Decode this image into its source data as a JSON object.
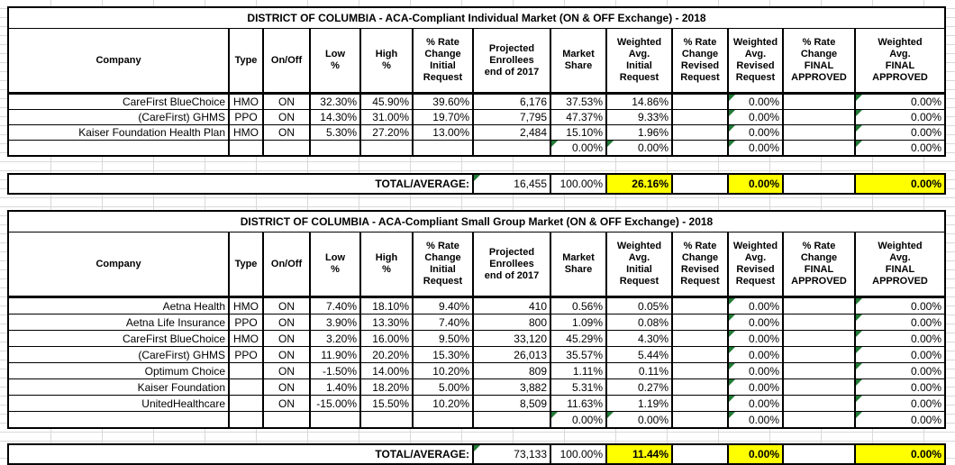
{
  "colors": {
    "highlight_yellow": "#ffff00",
    "indicator_triangle_green": "#217a36",
    "table_border": "#000000",
    "sheet_gridline": "#d9d9d9"
  },
  "columns": [
    "Company",
    "Type",
    "On/Off",
    "Low\n%",
    "High\n%",
    "% Rate\nChange\nInitial\nRequest",
    "Projected\nEnrollees\nend of 2017",
    "Market\nShare",
    "Weighted\nAvg.\nInitial\nRequest",
    "% Rate\nChange\nRevised\nRequest",
    "Weighted\nAvg.\nRevised\nRequest",
    "% Rate\nChange\nFINAL\nAPPROVED",
    "Weighted\nAvg.\nFINAL\nAPPROVED"
  ],
  "tables": [
    {
      "title": "DISTRICT OF COLUMBIA - ACA-Compliant Individual Market (ON & OFF Exchange) - 2018",
      "rows": [
        {
          "cells": [
            "CareFirst BlueChoice",
            "HMO",
            "ON",
            "32.30%",
            "45.90%",
            "39.60%",
            "6,176",
            "37.53%",
            "14.86%",
            "",
            "0.00%",
            "",
            "0.00%"
          ],
          "markers": [
            10,
            12
          ]
        },
        {
          "cells": [
            "(CareFirst) GHMS",
            "PPO",
            "ON",
            "14.30%",
            "31.00%",
            "19.70%",
            "7,795",
            "47.37%",
            "9.33%",
            "",
            "0.00%",
            "",
            "0.00%"
          ],
          "markers": [
            10,
            12
          ]
        },
        {
          "cells": [
            "Kaiser Foundation Health Plan",
            "HMO",
            "ON",
            "5.30%",
            "27.20%",
            "13.00%",
            "2,484",
            "15.10%",
            "1.96%",
            "",
            "0.00%",
            "",
            "0.00%"
          ],
          "markers": [
            10,
            12
          ]
        },
        {
          "cells": [
            "",
            "",
            "",
            "",
            "",
            "",
            "",
            "0.00%",
            "0.00%",
            "",
            "0.00%",
            "",
            "0.00%"
          ],
          "markers": [
            7,
            8,
            10,
            12
          ]
        }
      ],
      "total": [
        "TOTAL/AVERAGE:",
        "16,455",
        "100.00%",
        "26.16%",
        "",
        "0.00%",
        "",
        "0.00%"
      ]
    },
    {
      "title": "DISTRICT OF COLUMBIA - ACA-Compliant Small Group Market (ON & OFF Exchange) - 2018",
      "rows": [
        {
          "cells": [
            "Aetna Health",
            "HMO",
            "ON",
            "7.40%",
            "18.10%",
            "9.40%",
            "410",
            "0.56%",
            "0.05%",
            "",
            "0.00%",
            "",
            "0.00%"
          ],
          "markers": [
            10,
            12
          ]
        },
        {
          "cells": [
            "Aetna Life Insurance",
            "PPO",
            "ON",
            "3.90%",
            "13.30%",
            "7.40%",
            "800",
            "1.09%",
            "0.08%",
            "",
            "0.00%",
            "",
            "0.00%"
          ],
          "markers": [
            10,
            12
          ]
        },
        {
          "cells": [
            "CareFirst BlueChoice",
            "HMO",
            "ON",
            "3.20%",
            "16.00%",
            "9.50%",
            "33,120",
            "45.29%",
            "4.30%",
            "",
            "0.00%",
            "",
            "0.00%"
          ],
          "markers": [
            10,
            12
          ]
        },
        {
          "cells": [
            "(CareFirst) GHMS",
            "PPO",
            "ON",
            "11.90%",
            "20.20%",
            "15.30%",
            "26,013",
            "35.57%",
            "5.44%",
            "",
            "0.00%",
            "",
            "0.00%"
          ],
          "markers": [
            10,
            12
          ]
        },
        {
          "cells": [
            "Optimum Choice",
            "",
            "ON",
            "-1.50%",
            "14.00%",
            "10.20%",
            "809",
            "1.11%",
            "0.11%",
            "",
            "0.00%",
            "",
            "0.00%"
          ],
          "markers": [
            10,
            12
          ]
        },
        {
          "cells": [
            "Kaiser Foundation",
            "",
            "ON",
            "1.40%",
            "18.20%",
            "5.00%",
            "3,882",
            "5.31%",
            "0.27%",
            "",
            "0.00%",
            "",
            "0.00%"
          ],
          "markers": [
            10,
            12
          ]
        },
        {
          "cells": [
            "UnitedHealthcare",
            "",
            "ON",
            "-15.00%",
            "15.50%",
            "10.20%",
            "8,509",
            "11.63%",
            "1.19%",
            "",
            "0.00%",
            "",
            "0.00%"
          ],
          "markers": [
            10,
            12
          ]
        },
        {
          "cells": [
            "",
            "",
            "",
            "",
            "",
            "",
            "",
            "0.00%",
            "0.00%",
            "",
            "0.00%",
            "",
            "0.00%"
          ],
          "markers": [
            7,
            8,
            10,
            12
          ]
        }
      ],
      "total": [
        "TOTAL/AVERAGE:",
        "73,133",
        "100.00%",
        "11.44%",
        "",
        "0.00%",
        "",
        "0.00%"
      ]
    }
  ]
}
